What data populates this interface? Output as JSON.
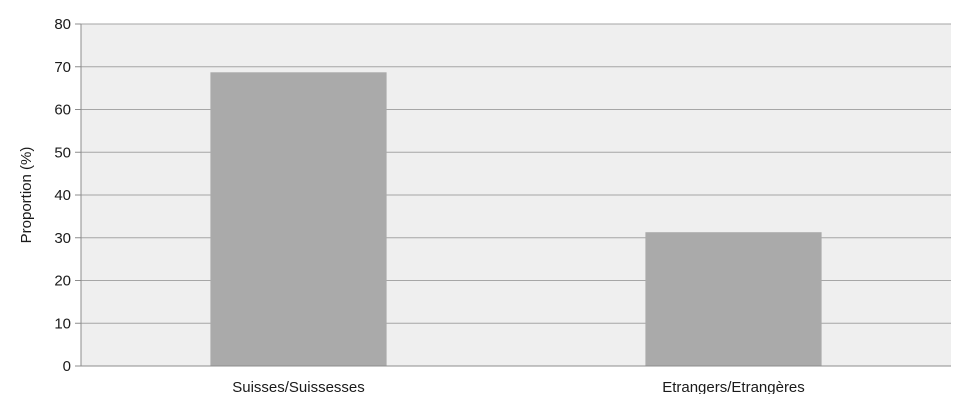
{
  "chart_data": {
    "type": "bar",
    "categories": [
      "Suisses/Suissesses",
      "Etrangers/Etrangères"
    ],
    "values": [
      68.7,
      31.3
    ],
    "title": "",
    "xlabel": "",
    "ylabel": "Proportion (%)",
    "ylim": [
      0,
      80
    ],
    "yticks": [
      0,
      10,
      20,
      30,
      40,
      50,
      60,
      70,
      80
    ],
    "grid": true,
    "legend": "none",
    "colors": {
      "bar": "#aaaaaa",
      "plot_background": "#efefef",
      "gridline": "#a6a6a6",
      "axis": "#8c8c8c"
    }
  }
}
